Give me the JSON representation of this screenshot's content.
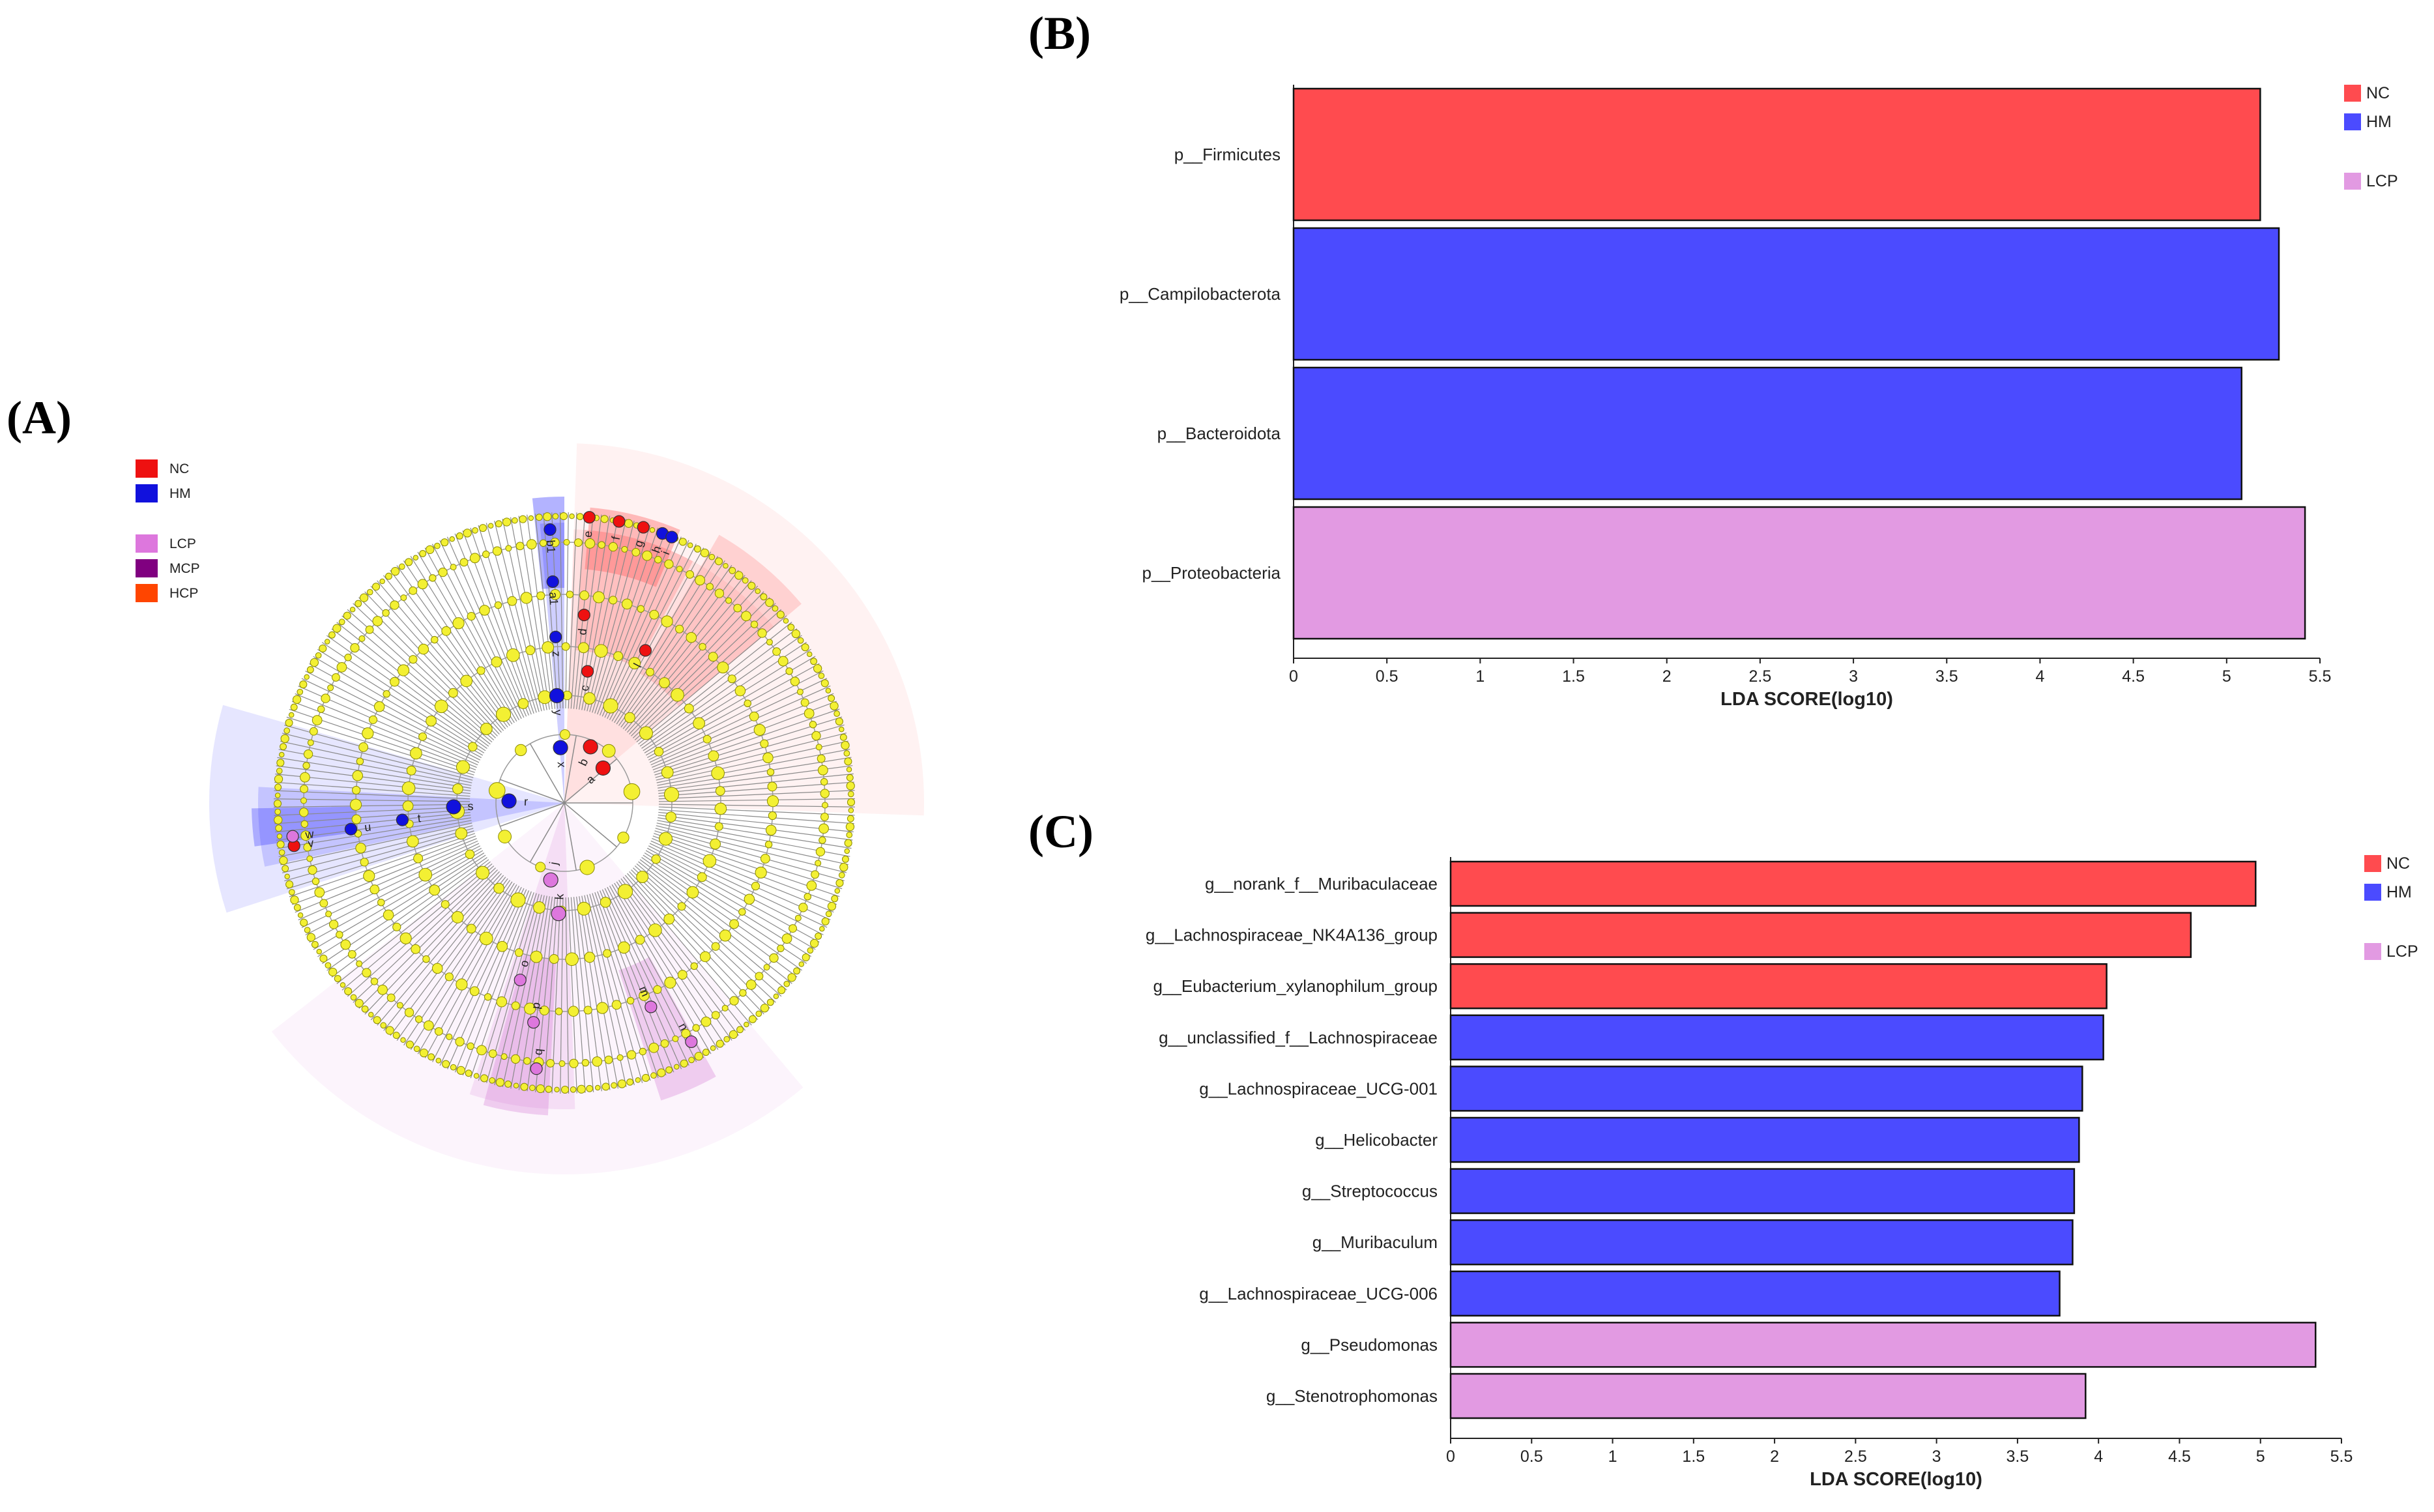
{
  "panels": {
    "a": "(A)",
    "b": "(B)",
    "c": "(C)"
  },
  "colors": {
    "NC": "#ff4b4f",
    "HM": "#4b4bff",
    "LCP": "#e29ae2",
    "MCP": "#800080",
    "HCP": "#ff4500",
    "node": "#f3f033"
  },
  "cladogram": {
    "legend": [
      {
        "label": "NC",
        "color": "#ee1111"
      },
      {
        "label": "HM",
        "color": "#1111dd"
      },
      {
        "label": "LCP",
        "color": "#dd77dd"
      },
      {
        "label": "MCP",
        "color": "#800080"
      },
      {
        "label": "HCP",
        "color": "#ff4500"
      }
    ],
    "biomarker_letters": [
      "a",
      "b",
      "c",
      "d",
      "e",
      "f",
      "g",
      "h",
      "i",
      "j",
      "k",
      "l",
      "m",
      "n",
      "o",
      "p",
      "q",
      "r",
      "s",
      "t",
      "u",
      "v",
      "w",
      "x",
      "y",
      "z",
      "a1",
      "b1"
    ]
  },
  "chart_data": [
    {
      "type": "bar",
      "orientation": "horizontal",
      "panel": "(B)",
      "categories": [
        "p__Firmicutes",
        "p__Campilobacterota",
        "p__Bacteroidota",
        "p__Proteobacteria"
      ],
      "values": [
        5.18,
        5.28,
        5.08,
        5.42
      ],
      "groups": [
        "NC",
        "HM",
        "HM",
        "LCP"
      ],
      "xlabel": "LDA SCORE(log10)",
      "xlim": [
        0,
        5.5
      ],
      "ticks": [
        "0",
        "0.5",
        "1",
        "1.5",
        "2",
        "2.5",
        "3",
        "3.5",
        "4",
        "4.5",
        "5",
        "5.5"
      ],
      "legend": [
        "NC",
        "HM",
        "LCP"
      ],
      "legend_position": "top-right"
    },
    {
      "type": "bar",
      "orientation": "horizontal",
      "panel": "(C)",
      "categories": [
        "g__norank_f__Muribaculaceae",
        "g__Lachnospiraceae_NK4A136_group",
        "g__Eubacterium_xylanophilum_group",
        "g__unclassified_f__Lachnospiraceae",
        "g__Lachnospiraceae_UCG-001",
        "g__Helicobacter",
        "g__Streptococcus",
        "g__Muribaculum",
        "g__Lachnospiraceae_UCG-006",
        "g__Pseudomonas",
        "g__Stenotrophomonas"
      ],
      "values": [
        4.97,
        4.57,
        4.05,
        4.03,
        3.9,
        3.88,
        3.85,
        3.84,
        3.76,
        5.34,
        3.92
      ],
      "groups": [
        "NC",
        "NC",
        "NC",
        "HM",
        "HM",
        "HM",
        "HM",
        "HM",
        "HM",
        "LCP",
        "LCP"
      ],
      "xlabel": "LDA SCORE(log10)",
      "xlim": [
        0,
        5.5
      ],
      "ticks": [
        "0",
        "0.5",
        "1",
        "1.5",
        "2",
        "2.5",
        "3",
        "3.5",
        "4",
        "4.5",
        "5",
        "5.5"
      ],
      "legend": [
        "NC",
        "HM",
        "LCP"
      ],
      "legend_position": "top-right"
    }
  ]
}
